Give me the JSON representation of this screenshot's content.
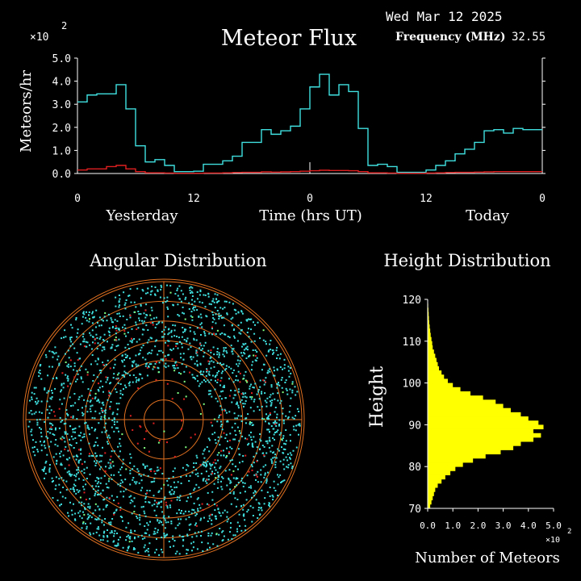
{
  "header": {
    "date": "Wed Mar 12 2025",
    "title": "Meteor Flux",
    "freq_label": "Frequency (MHz)",
    "freq_value": "32.55",
    "multiplier": "×10",
    "multiplier_exp": "2"
  },
  "colors": {
    "background": "#000000",
    "today_series": "#40e0e0",
    "yesterday_series": "#e02020",
    "height_bars": "#ffff00",
    "axes": "#ffffff",
    "rings": "#e07020",
    "radial_lines": "#e07020"
  },
  "chart_data": [
    {
      "type": "line",
      "title": "Meteor Flux",
      "ylabel": "Meteors/hr",
      "xlabel": "Time (hrs UT)",
      "x_group_labels": [
        "Yesterday",
        "Today"
      ],
      "x_ticks": [
        "0",
        "12",
        "0",
        "12",
        "0"
      ],
      "y_ticks": [
        "0.0",
        "1.0",
        "2.0",
        "3.0",
        "4.0",
        "5.0"
      ],
      "y_multiplier": "×10^2",
      "ylim": [
        0,
        5.0
      ],
      "xlim": [
        0,
        48
      ],
      "series": [
        {
          "step": "post",
          "color": "#40e0e0",
          "x": [
            0,
            1,
            2,
            3,
            4,
            5,
            6,
            7,
            8,
            9,
            10,
            11,
            12,
            13,
            14,
            15,
            16,
            17,
            18,
            19,
            20,
            21,
            22,
            23,
            24,
            25,
            26,
            27,
            28,
            29,
            30,
            31,
            32,
            33,
            34,
            35,
            36,
            37,
            38,
            39,
            40,
            41,
            42,
            43,
            44,
            45,
            46,
            47,
            48
          ],
          "values": [
            3.1,
            3.4,
            3.45,
            3.45,
            3.85,
            2.8,
            1.2,
            0.5,
            0.6,
            0.35,
            0.08,
            0.08,
            0.1,
            0.4,
            0.4,
            0.55,
            0.75,
            1.35,
            1.35,
            1.9,
            1.7,
            1.85,
            2.05,
            2.8,
            3.75,
            4.3,
            3.4,
            3.85,
            3.55,
            1.95,
            0.35,
            0.4,
            0.3,
            0.05,
            0.05,
            0.05,
            0.15,
            0.35,
            0.55,
            0.85,
            1.05,
            1.35,
            1.85,
            1.9,
            1.75,
            1.95,
            1.9,
            1.9,
            1.9
          ]
        },
        {
          "step": "post",
          "color": "#e02020",
          "x": [
            0,
            1,
            2,
            3,
            4,
            5,
            6,
            7,
            8,
            9,
            10,
            11,
            12,
            13,
            14,
            15,
            16,
            17,
            18,
            19,
            20,
            21,
            22,
            23,
            24,
            25,
            26,
            27,
            28,
            29,
            30,
            31,
            32,
            33,
            34,
            35,
            36,
            37,
            38,
            39,
            40,
            41,
            42,
            43,
            44,
            45,
            46,
            47,
            48
          ],
          "values": [
            0.15,
            0.2,
            0.2,
            0.3,
            0.35,
            0.2,
            0.08,
            0.03,
            0.03,
            0.02,
            0.01,
            0.01,
            0.01,
            0.02,
            0.02,
            0.03,
            0.04,
            0.05,
            0.05,
            0.07,
            0.06,
            0.07,
            0.08,
            0.1,
            0.12,
            0.14,
            0.13,
            0.13,
            0.12,
            0.08,
            0.03,
            0.03,
            0.02,
            0.01,
            0.01,
            0.01,
            0.02,
            0.03,
            0.04,
            0.05,
            0.05,
            0.06,
            0.07,
            0.08,
            0.08,
            0.08,
            0.08,
            0.08,
            0.08
          ]
        }
      ]
    },
    {
      "type": "scatter",
      "title": "Angular Distribution",
      "rings": 7,
      "note": "polar sky map of meteor positions"
    },
    {
      "type": "bar",
      "orientation": "horizontal",
      "title": "Height Distribution",
      "ylabel": "Height",
      "xlabel": "Number of Meteors",
      "x_ticks": [
        "0.0",
        "1.0",
        "2.0",
        "3.0",
        "4.0",
        "5.0"
      ],
      "x_multiplier": "×10^2",
      "y_ticks": [
        "70",
        "80",
        "90",
        "100",
        "110",
        "120"
      ],
      "ylim": [
        70,
        120
      ],
      "xlim": [
        0,
        5.0
      ],
      "heights": [
        70,
        71,
        72,
        73,
        74,
        75,
        76,
        77,
        78,
        79,
        80,
        81,
        82,
        83,
        84,
        85,
        86,
        87,
        88,
        89,
        90,
        91,
        92,
        93,
        94,
        95,
        96,
        97,
        98,
        99,
        100,
        101,
        102,
        103,
        104,
        105,
        106,
        107,
        108,
        109,
        110,
        111,
        112,
        113,
        114,
        115,
        116,
        117,
        118,
        119
      ],
      "values": [
        0.1,
        0.15,
        0.2,
        0.25,
        0.3,
        0.4,
        0.55,
        0.7,
        0.9,
        1.1,
        1.4,
        1.8,
        2.3,
        2.9,
        3.4,
        3.7,
        4.2,
        4.5,
        4.2,
        4.6,
        4.4,
        4.0,
        3.7,
        3.3,
        3.0,
        2.7,
        2.2,
        1.7,
        1.3,
        1.0,
        0.8,
        0.65,
        0.55,
        0.45,
        0.4,
        0.35,
        0.3,
        0.25,
        0.2,
        0.18,
        0.15,
        0.12,
        0.1,
        0.08,
        0.06,
        0.05,
        0.04,
        0.03,
        0.02,
        0.01
      ]
    }
  ]
}
